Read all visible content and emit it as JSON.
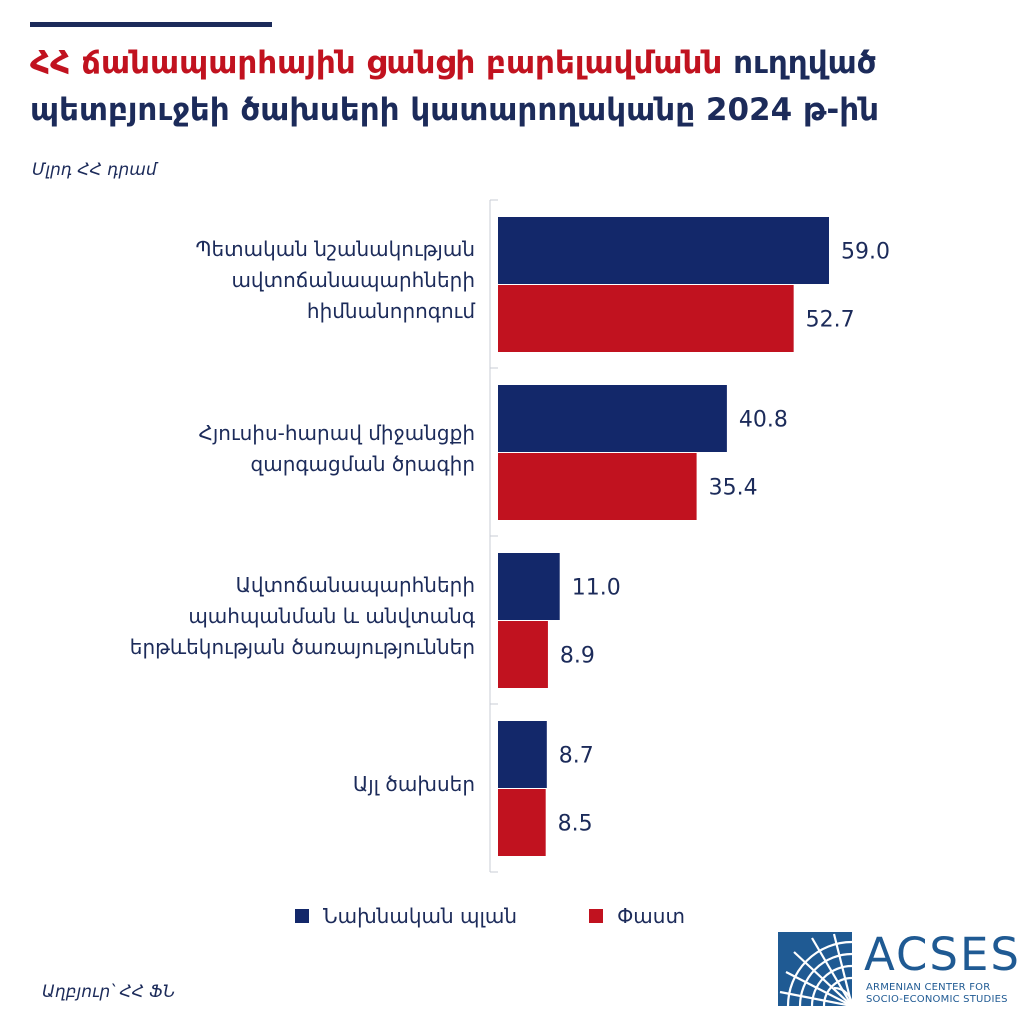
{
  "title": {
    "highlight": "ՀՀ ճանապարհային ցանցի բարելավմանն",
    "rest": " ուղղված պետբյուջեի ծախսերի կատարողականը 2024 թ-ին"
  },
  "unit_label": "Մլրդ ՀՀ դրամ",
  "source": "Աղբյուր՝ ՀՀ ՖՆ",
  "logo": {
    "name": "ACSES",
    "sub_line1": "ARMENIAN CENTER FOR",
    "sub_line2": "SOCIO-ECONOMIC STUDIES"
  },
  "colors": {
    "planned": "#13286a",
    "actual": "#c1121f",
    "text": "#1c2b5a",
    "brand": "#1f5a93"
  },
  "chart_data": {
    "type": "bar",
    "orientation": "horizontal",
    "categories": [
      [
        "Պետական նշանակության",
        "ավտոճանապարհների",
        "հիմնանորոգում"
      ],
      [
        "Հյուսիս-հարավ միջանցքի",
        "զարգացման ծրագիր"
      ],
      [
        "Ավտոճանապարհների",
        "պահպանման և անվտանգ",
        "երթևեկության ծառայություններ"
      ],
      [
        "Այլ ծախսեր"
      ]
    ],
    "series": [
      {
        "name": "Նախնական պլան",
        "values": [
          59.0,
          40.8,
          11.0,
          8.7
        ],
        "labels": [
          "59.0",
          "40.8",
          "11.0",
          "8.7"
        ]
      },
      {
        "name": "Փաստ",
        "values": [
          52.7,
          35.4,
          8.9,
          8.5
        ],
        "labels": [
          "52.7",
          "35.4",
          "8.9",
          "8.5"
        ]
      }
    ],
    "xlim": [
      0,
      59.0
    ],
    "legend_position": "bottom",
    "grid": false
  }
}
